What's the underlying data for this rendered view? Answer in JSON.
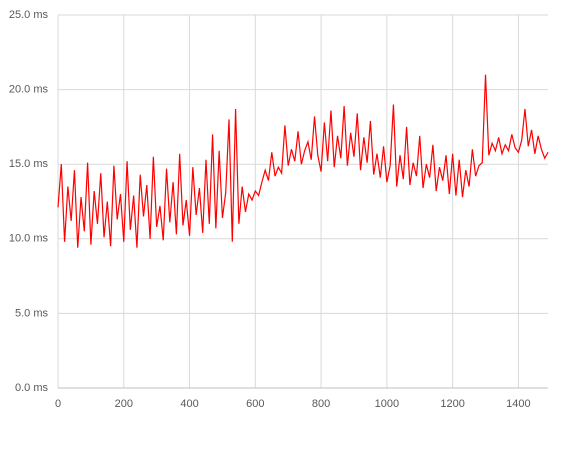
{
  "chart_data": {
    "type": "line",
    "x": [
      0,
      10,
      20,
      30,
      40,
      50,
      60,
      70,
      80,
      90,
      100,
      110,
      120,
      130,
      140,
      150,
      160,
      170,
      180,
      190,
      200,
      210,
      220,
      230,
      240,
      250,
      260,
      270,
      280,
      290,
      300,
      310,
      320,
      330,
      340,
      350,
      360,
      370,
      380,
      390,
      400,
      410,
      420,
      430,
      440,
      450,
      460,
      470,
      480,
      490,
      500,
      510,
      520,
      530,
      540,
      550,
      560,
      570,
      580,
      590,
      600,
      610,
      620,
      630,
      640,
      650,
      660,
      670,
      680,
      690,
      700,
      710,
      720,
      730,
      740,
      750,
      760,
      770,
      780,
      790,
      800,
      810,
      820,
      830,
      840,
      850,
      860,
      870,
      880,
      890,
      900,
      910,
      920,
      930,
      940,
      950,
      960,
      970,
      980,
      990,
      1000,
      1010,
      1020,
      1030,
      1040,
      1050,
      1060,
      1070,
      1080,
      1090,
      1100,
      1110,
      1120,
      1130,
      1140,
      1150,
      1160,
      1170,
      1180,
      1190,
      1200,
      1210,
      1220,
      1230,
      1240,
      1250,
      1260,
      1270,
      1280,
      1290,
      1300,
      1310,
      1320,
      1330,
      1340,
      1350,
      1360,
      1370,
      1380,
      1390,
      1400,
      1410,
      1420,
      1430,
      1440,
      1450,
      1460,
      1470,
      1480,
      1490
    ],
    "series": [
      {
        "color": "#ff0000",
        "values": [
          12.1,
          15.0,
          9.8,
          13.5,
          11.2,
          14.6,
          9.4,
          12.8,
          10.5,
          15.1,
          9.6,
          13.2,
          11.0,
          14.4,
          10.1,
          12.5,
          9.5,
          14.9,
          11.3,
          13.0,
          9.8,
          15.2,
          10.6,
          12.9,
          9.4,
          14.3,
          11.5,
          13.6,
          10.0,
          15.5,
          10.8,
          12.2,
          9.9,
          14.7,
          11.1,
          13.8,
          10.3,
          15.7,
          10.9,
          12.6,
          10.2,
          14.8,
          11.6,
          13.4,
          10.4,
          15.3,
          11.0,
          17.0,
          10.7,
          15.9,
          11.4,
          13.1,
          18.0,
          9.8,
          18.7,
          11.0,
          13.5,
          11.8,
          13.0,
          12.6,
          13.2,
          12.9,
          13.8,
          14.6,
          13.9,
          15.8,
          14.2,
          14.8,
          14.4,
          17.6,
          14.9,
          16.0,
          15.2,
          17.2,
          15.0,
          15.9,
          16.5,
          15.3,
          18.2,
          15.6,
          14.5,
          17.8,
          15.2,
          18.6,
          14.8,
          16.9,
          15.4,
          18.9,
          14.9,
          17.1,
          15.5,
          18.4,
          14.6,
          16.8,
          15.1,
          17.9,
          14.3,
          15.7,
          14.1,
          16.2,
          13.8,
          14.9,
          19.0,
          13.5,
          15.6,
          14.0,
          17.5,
          13.6,
          15.1,
          14.2,
          16.9,
          13.4,
          15.0,
          14.1,
          16.3,
          13.2,
          14.8,
          13.9,
          15.6,
          13.0,
          15.7,
          12.9,
          15.3,
          12.8,
          14.6,
          13.5,
          16.0,
          14.2,
          14.9,
          15.1,
          21.0,
          15.6,
          16.4,
          15.9,
          16.8,
          15.7,
          16.3,
          15.9,
          17.0,
          16.1,
          15.8,
          16.6,
          18.7,
          16.2,
          17.3,
          15.7,
          16.9,
          16.0,
          15.4,
          15.8
        ]
      }
    ],
    "xlim": [
      0,
      1490
    ],
    "xticks": [
      0,
      200,
      400,
      600,
      800,
      1000,
      1200,
      1400
    ],
    "ylim": [
      0,
      25
    ],
    "yticks": [
      {
        "value": 0,
        "label": "0.0 ms"
      },
      {
        "value": 5,
        "label": "5.0 ms"
      },
      {
        "value": 10,
        "label": "10.0 ms"
      },
      {
        "value": 15,
        "label": "15.0 ms"
      },
      {
        "value": 20,
        "label": "20.0 ms"
      },
      {
        "value": 25,
        "label": "25.0 ms"
      }
    ],
    "grid": true
  }
}
